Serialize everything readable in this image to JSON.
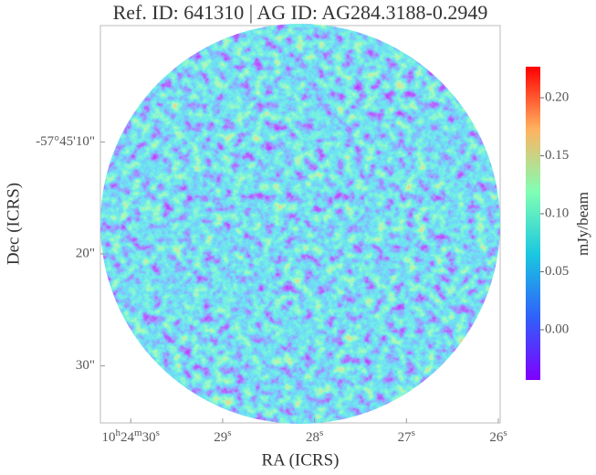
{
  "chart_data": {
    "type": "image",
    "title": "Ref. ID: 641310 | AG ID: AG284.3188-0.2949",
    "x_label": "RA (ICRS)",
    "y_label": "Dec (ICRS)",
    "colorbar_label": "mJy/beam",
    "xlim": [
      30.33,
      25.98
    ],
    "xticks": [
      {
        "value": 30,
        "label": "10h24m30s"
      },
      {
        "value": 29,
        "label": "29s"
      },
      {
        "value": 28,
        "label": "28s"
      },
      {
        "value": 27,
        "label": "27s"
      },
      {
        "value": 26,
        "label": "26s"
      }
    ],
    "ylim": [
      35.1,
      -0.4
    ],
    "yticks": [
      {
        "value": 10,
        "label": "-57°45'10\""
      },
      {
        "value": 20,
        "label": "20\""
      },
      {
        "value": 30,
        "label": "30\""
      }
    ],
    "clim": [
      -0.0433,
      0.2268
    ],
    "cticks": [
      {
        "value": 0,
        "label": "0.00"
      },
      {
        "value": 0.05,
        "label": "0.05"
      },
      {
        "value": 0.1,
        "label": "0.10"
      },
      {
        "value": 0.15,
        "label": "0.15"
      },
      {
        "value": 0.2,
        "label": "0.20"
      }
    ]
  }
}
